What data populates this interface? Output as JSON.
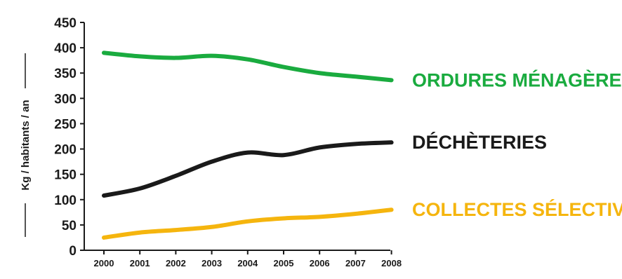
{
  "chart_data": {
    "type": "line",
    "ylabel": "Kg / habitants / an",
    "xlabel": "",
    "x": [
      "2000",
      "2001",
      "2002",
      "2003",
      "2004",
      "2005",
      "2006",
      "2007",
      "2008"
    ],
    "ylim": [
      0,
      450
    ],
    "yticks": [
      "0",
      "50",
      "100",
      "150",
      "200",
      "250",
      "300",
      "350",
      "400",
      "450"
    ],
    "grid": false,
    "series": [
      {
        "name": "ORDURES MÉNAGÈRES",
        "color": "#1aab3f",
        "values": [
          390,
          383,
          380,
          384,
          377,
          362,
          350,
          343,
          336
        ]
      },
      {
        "name": "DÉCHÈTERIES",
        "color": "#1a1a1a",
        "values": [
          108,
          122,
          147,
          175,
          193,
          188,
          203,
          210,
          213
        ]
      },
      {
        "name": "COLLECTES SÉLECTIVES",
        "color": "#f5b50e",
        "values": [
          25,
          35,
          40,
          46,
          57,
          63,
          66,
          72,
          80
        ]
      }
    ]
  }
}
